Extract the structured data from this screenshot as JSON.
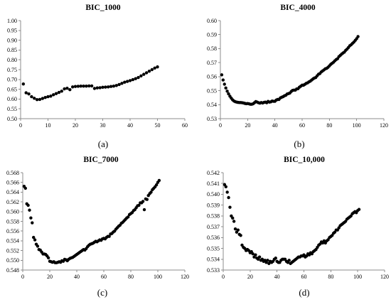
{
  "chart_data": [
    {
      "type": "scatter",
      "title": "BIC_1000",
      "caption": "(a)",
      "xlim": [
        0,
        60
      ],
      "ylim": [
        0.5,
        1.0
      ],
      "xticks": [
        0,
        10,
        20,
        30,
        40,
        50,
        60
      ],
      "xtick_labels": [
        "0",
        "10",
        "20",
        "30",
        "40",
        "50",
        "60"
      ],
      "yticks": [
        0.5,
        0.55,
        0.6,
        0.65,
        0.7,
        0.75,
        0.8,
        0.85,
        0.9,
        0.95,
        1.0
      ],
      "ytick_labels": [
        "0.50",
        "0.55",
        "0.60",
        "0.65",
        "0.70",
        "0.75",
        "0.80",
        "0.85",
        "0.90",
        "0.95",
        "1.00"
      ],
      "x": [
        1,
        2,
        3,
        4,
        5,
        6,
        7,
        8,
        9,
        10,
        11,
        12,
        13,
        14,
        15,
        16,
        17,
        18,
        19,
        20,
        21,
        22,
        23,
        24,
        25,
        26,
        27,
        28,
        29,
        30,
        31,
        32,
        33,
        34,
        35,
        36,
        37,
        38,
        39,
        40,
        41,
        42,
        43,
        44,
        45,
        46,
        47,
        48,
        49,
        50
      ],
      "y": [
        0.677,
        0.632,
        0.626,
        0.612,
        0.604,
        0.597,
        0.598,
        0.603,
        0.608,
        0.612,
        0.615,
        0.622,
        0.628,
        0.634,
        0.64,
        0.652,
        0.655,
        0.648,
        0.662,
        0.664,
        0.665,
        0.666,
        0.666,
        0.666,
        0.667,
        0.667,
        0.654,
        0.657,
        0.658,
        0.66,
        0.661,
        0.662,
        0.664,
        0.666,
        0.669,
        0.674,
        0.68,
        0.686,
        0.69,
        0.694,
        0.699,
        0.704,
        0.71,
        0.718,
        0.726,
        0.734,
        0.742,
        0.75,
        0.758,
        0.764
      ]
    },
    {
      "type": "scatter",
      "title": "BIC_4000",
      "caption": "(b)",
      "xlim": [
        0,
        120
      ],
      "ylim": [
        0.53,
        0.6
      ],
      "xticks": [
        0,
        20,
        40,
        60,
        80,
        100,
        120
      ],
      "xtick_labels": [
        "0",
        "20",
        "40",
        "60",
        "80",
        "100",
        "120"
      ],
      "yticks": [
        0.53,
        0.54,
        0.55,
        0.56,
        0.57,
        0.58,
        0.59,
        0.6
      ],
      "ytick_labels": [
        "0.53",
        "0.54",
        "0.55",
        "0.56",
        "0.57",
        "0.58",
        "0.59",
        "0.60"
      ],
      "x": [
        1,
        2,
        3,
        4,
        5,
        6,
        7,
        8,
        9,
        10,
        11,
        12,
        13,
        14,
        15,
        16,
        17,
        18,
        19,
        20,
        21,
        22,
        23,
        24,
        25,
        26,
        27,
        28,
        29,
        30,
        31,
        32,
        33,
        34,
        35,
        36,
        37,
        38,
        39,
        40,
        41,
        42,
        43,
        44,
        45,
        46,
        47,
        48,
        49,
        50,
        51,
        52,
        53,
        54,
        55,
        56,
        57,
        58,
        59,
        60,
        61,
        62,
        63,
        64,
        65,
        66,
        67,
        68,
        69,
        70,
        71,
        72,
        73,
        74,
        75,
        76,
        77,
        78,
        79,
        80,
        81,
        82,
        83,
        84,
        85,
        86,
        87,
        88,
        89,
        90,
        91,
        92,
        93,
        94,
        95,
        96,
        97,
        98,
        99,
        100,
        101
      ],
      "y": [
        0.5613,
        0.5576,
        0.5546,
        0.5519,
        0.5496,
        0.5477,
        0.546,
        0.5446,
        0.5434,
        0.5426,
        0.5421,
        0.5418,
        0.5416,
        0.5415,
        0.5415,
        0.5414,
        0.5412,
        0.5409,
        0.5407,
        0.5408,
        0.5406,
        0.5403,
        0.5403,
        0.5406,
        0.5414,
        0.5422,
        0.5418,
        0.5414,
        0.5411,
        0.5415,
        0.5412,
        0.5416,
        0.5418,
        0.5414,
        0.5423,
        0.5418,
        0.542,
        0.5426,
        0.5424,
        0.5424,
        0.5433,
        0.5437,
        0.5437,
        0.5448,
        0.5453,
        0.5457,
        0.5463,
        0.5467,
        0.5476,
        0.5479,
        0.5483,
        0.5494,
        0.5502,
        0.5504,
        0.5504,
        0.5512,
        0.5514,
        0.5525,
        0.5532,
        0.5539,
        0.5539,
        0.5545,
        0.5552,
        0.5556,
        0.5563,
        0.5568,
        0.5576,
        0.5584,
        0.559,
        0.5594,
        0.5606,
        0.5617,
        0.5622,
        0.5633,
        0.5641,
        0.5648,
        0.5656,
        0.5659,
        0.5667,
        0.5677,
        0.5688,
        0.5695,
        0.5703,
        0.5713,
        0.5722,
        0.5728,
        0.5743,
        0.5752,
        0.5761,
        0.5769,
        0.5775,
        0.5788,
        0.5797,
        0.5808,
        0.5821,
        0.5828,
        0.5838,
        0.5847,
        0.5859,
        0.5871,
        0.5886
      ]
    },
    {
      "type": "scatter",
      "title": "BIC_7000",
      "caption": "(c)",
      "xlim": [
        0,
        120
      ],
      "ylim": [
        0.548,
        0.568
      ],
      "xticks": [
        0,
        20,
        40,
        60,
        80,
        100,
        120
      ],
      "xtick_labels": [
        "0",
        "20",
        "40",
        "60",
        "80",
        "100",
        "120"
      ],
      "yticks": [
        0.548,
        0.55,
        0.552,
        0.554,
        0.556,
        0.558,
        0.56,
        0.562,
        0.564,
        0.566,
        0.568
      ],
      "ytick_labels": [
        "0.548",
        "0.550",
        "0.552",
        "0.554",
        "0.556",
        "0.558",
        "0.560",
        "0.562",
        "0.564",
        "0.566",
        "0.568"
      ],
      "x": [
        1,
        2,
        3,
        4,
        5,
        6,
        7,
        8,
        9,
        10,
        11,
        12,
        13,
        14,
        15,
        16,
        17,
        18,
        19,
        20,
        21,
        22,
        23,
        24,
        25,
        26,
        27,
        28,
        29,
        30,
        31,
        32,
        33,
        34,
        35,
        36,
        37,
        38,
        39,
        40,
        41,
        42,
        43,
        44,
        45,
        46,
        47,
        48,
        49,
        50,
        51,
        52,
        53,
        54,
        55,
        56,
        57,
        58,
        59,
        60,
        61,
        62,
        63,
        64,
        65,
        66,
        67,
        68,
        69,
        70,
        71,
        72,
        73,
        74,
        75,
        76,
        77,
        78,
        79,
        80,
        81,
        82,
        83,
        84,
        85,
        86,
        87,
        88,
        89,
        90,
        91,
        92,
        93,
        94,
        95,
        96,
        97,
        98,
        99,
        100,
        101
      ],
      "y": [
        0.5652,
        0.5648,
        0.5616,
        0.5613,
        0.5603,
        0.5587,
        0.5577,
        0.5547,
        0.5542,
        0.5533,
        0.5529,
        0.5522,
        0.5521,
        0.5517,
        0.5513,
        0.5513,
        0.5512,
        0.5509,
        0.5505,
        0.5498,
        0.5497,
        0.5496,
        0.5497,
        0.5495,
        0.5495,
        0.5496,
        0.5497,
        0.5496,
        0.5499,
        0.5498,
        0.5502,
        0.5501,
        0.5499,
        0.5502,
        0.5504,
        0.5505,
        0.5506,
        0.5508,
        0.551,
        0.5512,
        0.5514,
        0.5516,
        0.5518,
        0.552,
        0.5522,
        0.5521,
        0.5524,
        0.5528,
        0.5531,
        0.5533,
        0.5534,
        0.5535,
        0.5537,
        0.5539,
        0.5538,
        0.554,
        0.5542,
        0.5541,
        0.5544,
        0.5545,
        0.5544,
        0.5547,
        0.5549,
        0.5549,
        0.5554,
        0.5555,
        0.5558,
        0.556,
        0.5564,
        0.5567,
        0.557,
        0.5572,
        0.5576,
        0.5578,
        0.5581,
        0.5584,
        0.5587,
        0.5589,
        0.5594,
        0.5596,
        0.5598,
        0.5602,
        0.5604,
        0.5608,
        0.5612,
        0.5613,
        0.5618,
        0.5618,
        0.5621,
        0.5604,
        0.5626,
        0.5625,
        0.5633,
        0.5637,
        0.564,
        0.5645,
        0.5648,
        0.5651,
        0.5655,
        0.566,
        0.5664
      ]
    },
    {
      "type": "scatter",
      "title": "BIC_10,000",
      "caption": "(d)",
      "xlim": [
        0,
        120
      ],
      "ylim": [
        0.533,
        0.542
      ],
      "xticks": [
        0,
        20,
        40,
        60,
        80,
        100,
        120
      ],
      "xtick_labels": [
        "0",
        "20",
        "40",
        "60",
        "80",
        "100",
        "120"
      ],
      "yticks": [
        0.533,
        0.534,
        0.535,
        0.536,
        0.537,
        0.538,
        0.539,
        0.54,
        0.541,
        0.542
      ],
      "ytick_labels": [
        "0.533",
        "0.534",
        "0.535",
        "0.536",
        "0.537",
        "0.538",
        "0.539",
        "0.540",
        "0.541",
        "0.542"
      ],
      "x": [
        1,
        2,
        3,
        4,
        5,
        6,
        7,
        8,
        9,
        10,
        11,
        12,
        13,
        14,
        15,
        16,
        17,
        18,
        19,
        20,
        21,
        22,
        23,
        24,
        25,
        26,
        27,
        28,
        29,
        30,
        31,
        32,
        33,
        34,
        35,
        36,
        37,
        38,
        39,
        40,
        41,
        42,
        43,
        44,
        45,
        46,
        47,
        48,
        49,
        50,
        51,
        52,
        53,
        54,
        55,
        56,
        57,
        58,
        59,
        60,
        61,
        62,
        63,
        64,
        65,
        66,
        67,
        68,
        69,
        70,
        71,
        72,
        73,
        74,
        75,
        76,
        77,
        78,
        79,
        80,
        81,
        82,
        83,
        84,
        85,
        86,
        87,
        88,
        89,
        90,
        91,
        92,
        93,
        94,
        95,
        96,
        97,
        98,
        99,
        100,
        101
      ],
      "y": [
        0.5409,
        0.5407,
        0.5402,
        0.5397,
        0.5388,
        0.538,
        0.5378,
        0.5375,
        0.5368,
        0.5365,
        0.5367,
        0.5363,
        0.5362,
        0.5353,
        0.5351,
        0.535,
        0.5348,
        0.5349,
        0.5348,
        0.5346,
        0.5347,
        0.5345,
        0.5342,
        0.5344,
        0.5341,
        0.534,
        0.5342,
        0.5339,
        0.534,
        0.5338,
        0.5339,
        0.5337,
        0.5339,
        0.5336,
        0.5338,
        0.5337,
        0.5338,
        0.534,
        0.5341,
        0.5338,
        0.5337,
        0.5337,
        0.5339,
        0.534,
        0.534,
        0.534,
        0.5338,
        0.5337,
        0.5339,
        0.5336,
        0.5337,
        0.5338,
        0.5339,
        0.534,
        0.5341,
        0.5342,
        0.5342,
        0.5343,
        0.5343,
        0.5344,
        0.5342,
        0.5343,
        0.5345,
        0.5344,
        0.5346,
        0.5345,
        0.5347,
        0.5348,
        0.5349,
        0.5351,
        0.5353,
        0.5354,
        0.5356,
        0.5355,
        0.5357,
        0.5355,
        0.5357,
        0.5358,
        0.536,
        0.5361,
        0.5362,
        0.5364,
        0.5365,
        0.5367,
        0.5367,
        0.5369,
        0.5371,
        0.5372,
        0.5373,
        0.5374,
        0.5375,
        0.5377,
        0.5378,
        0.5379,
        0.538,
        0.5382,
        0.5383,
        0.5384,
        0.5383,
        0.5385,
        0.5386
      ]
    }
  ]
}
